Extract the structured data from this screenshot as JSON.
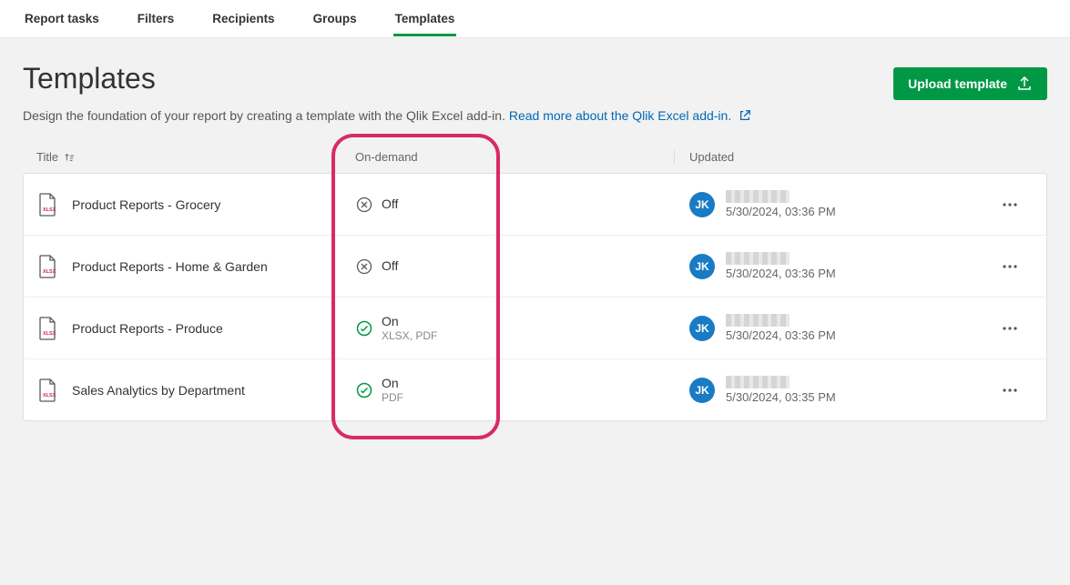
{
  "tabs": {
    "report_tasks": "Report tasks",
    "filters": "Filters",
    "recipients": "Recipients",
    "groups": "Groups",
    "templates": "Templates"
  },
  "page": {
    "title": "Templates",
    "subtitle_pre": "Design the foundation of your report by creating a template with the Qlik Excel add-in. ",
    "link_text": "Read more about the Qlik Excel add-in.",
    "upload_label": "Upload template"
  },
  "columns": {
    "title": "Title",
    "ondemand": "On-demand",
    "updated": "Updated"
  },
  "status": {
    "off": "Off",
    "on": "On"
  },
  "avatar_initials": "JK",
  "rows": [
    {
      "title": "Product Reports - Grocery",
      "ondemand": "off",
      "formats": "",
      "date": "5/30/2024, 03:36 PM"
    },
    {
      "title": "Product Reports - Home & Garden",
      "ondemand": "off",
      "formats": "",
      "date": "5/30/2024, 03:36 PM"
    },
    {
      "title": "Product Reports - Produce",
      "ondemand": "on",
      "formats": "XLSX, PDF",
      "date": "5/30/2024, 03:36 PM"
    },
    {
      "title": "Sales Analytics by Department",
      "ondemand": "on",
      "formats": "PDF",
      "date": "5/30/2024, 03:35 PM"
    }
  ],
  "colors": {
    "accent_green": "#009845",
    "link_blue": "#0068b4",
    "avatar_blue": "#1a7bc4",
    "highlight_pink": "#d82b66"
  }
}
